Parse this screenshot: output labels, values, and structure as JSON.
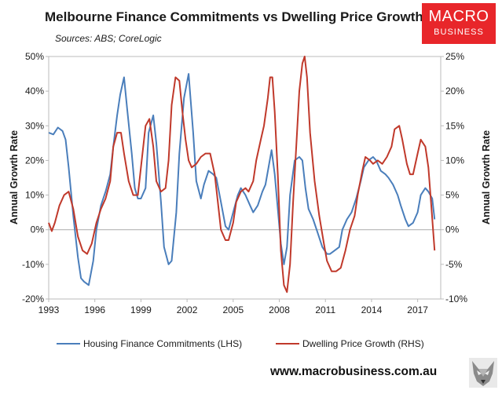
{
  "header": {
    "title": "Melbourne Finance Commitments vs Dwelling Price Growth",
    "subtitle": "Sources: ABS; CoreLogic"
  },
  "logo": {
    "line1": "MACRO",
    "line2": "BUSINESS",
    "color": "#e8262a"
  },
  "footer": {
    "url": "www.macrobusiness.com.au"
  },
  "chart_data": {
    "type": "line",
    "title": "Melbourne Finance Commitments vs Dwelling Price Growth",
    "ylabel": "Annual Growth Rate",
    "y2label": "Annual Growth Rate",
    "xlim": [
      1993,
      2018.5
    ],
    "ylim": [
      -20,
      50
    ],
    "y2lim": [
      -10,
      25
    ],
    "x_ticks": [
      1993,
      1996,
      1999,
      2002,
      2005,
      2008,
      2011,
      2014,
      2017
    ],
    "y_ticks": [
      -20,
      -10,
      0,
      10,
      20,
      30,
      40,
      50
    ],
    "y2_ticks": [
      -10,
      -5,
      0,
      5,
      10,
      15,
      20,
      25
    ],
    "y_tick_format": "percent",
    "grid": false,
    "legend": "bottom",
    "series": [
      {
        "name": "Housing Finance Commitments (LHS)",
        "axis": "left",
        "color": "#4a7ebb",
        "x": [
          1993.0,
          1993.3,
          1993.6,
          1993.9,
          1994.1,
          1994.3,
          1994.6,
          1994.9,
          1995.1,
          1995.3,
          1995.6,
          1995.9,
          1996.1,
          1996.4,
          1996.7,
          1997.0,
          1997.2,
          1997.45,
          1997.65,
          1997.9,
          1998.1,
          1998.4,
          1998.6,
          1998.8,
          1999.0,
          1999.3,
          1999.5,
          1999.8,
          2000.0,
          2000.3,
          2000.5,
          2000.8,
          2001.0,
          2001.3,
          2001.5,
          2001.8,
          2002.1,
          2002.4,
          2002.6,
          2002.9,
          2003.1,
          2003.4,
          2003.7,
          2003.9,
          2004.2,
          2004.5,
          2004.7,
          2005.0,
          2005.3,
          2005.5,
          2005.8,
          2006.1,
          2006.3,
          2006.6,
          2006.9,
          2007.1,
          2007.3,
          2007.5,
          2007.7,
          2007.9,
          2008.1,
          2008.3,
          2008.5,
          2008.7,
          2009.0,
          2009.3,
          2009.5,
          2009.7,
          2009.9,
          2010.2,
          2010.5,
          2010.8,
          2011.1,
          2011.3,
          2011.6,
          2011.9,
          2012.1,
          2012.4,
          2012.7,
          2013.0,
          2013.3,
          2013.5,
          2013.8,
          2014.1,
          2014.3,
          2014.6,
          2014.9,
          2015.1,
          2015.4,
          2015.7,
          2015.9,
          2016.2,
          2016.4,
          2016.7,
          2017.0,
          2017.2,
          2017.5,
          2017.7,
          2017.95,
          2018.1
        ],
        "y": [
          28,
          27.5,
          29.5,
          28.5,
          26,
          18,
          4,
          -8,
          -14,
          -15,
          -16,
          -9,
          0,
          7,
          11,
          16,
          24,
          33,
          39,
          44,
          35,
          22,
          12,
          9,
          9,
          12,
          28,
          33,
          25,
          8,
          -5,
          -10,
          -9,
          5,
          22,
          38,
          45,
          28,
          14,
          9,
          13,
          17,
          16,
          15,
          8,
          1,
          0,
          5,
          10,
          12,
          10,
          7,
          5,
          7,
          11,
          13,
          18,
          23,
          16,
          6,
          -4,
          -10,
          -5,
          10,
          20,
          21,
          20,
          12,
          6,
          3,
          -1,
          -5,
          -7,
          -7,
          -6,
          -5,
          0,
          3,
          5,
          9,
          14,
          18,
          20,
          21,
          20,
          17,
          16,
          15,
          13,
          10,
          7,
          3,
          1,
          2,
          5,
          10,
          12,
          11,
          9,
          3
        ],
        "values": [
          28,
          27.5,
          29.5,
          28.5,
          26,
          18,
          4,
          -8,
          -14,
          -15,
          -16,
          -9,
          0,
          7,
          11,
          16,
          24,
          33,
          39,
          44,
          35,
          22,
          12,
          9,
          9,
          12,
          28,
          33,
          25,
          8,
          -5,
          -10,
          -9,
          5,
          22,
          38,
          45,
          28,
          14,
          9,
          13,
          17,
          16,
          15,
          8,
          1,
          0,
          5,
          10,
          12,
          10,
          7,
          5,
          7,
          11,
          13,
          18,
          23,
          16,
          6,
          -4,
          -10,
          -5,
          10,
          20,
          21,
          20,
          12,
          6,
          3,
          -1,
          -5,
          -7,
          -7,
          -6,
          -5,
          0,
          3,
          5,
          9,
          14,
          18,
          20,
          21,
          20,
          17,
          16,
          15,
          13,
          10,
          7,
          3,
          1,
          2,
          5,
          10,
          12,
          11,
          9,
          3
        ]
      },
      {
        "name": "Dwelling Price Growth (RHS)",
        "axis": "right",
        "color": "#c0392b",
        "x": [
          1993.0,
          1993.2,
          1993.4,
          1993.7,
          1994.0,
          1994.3,
          1994.6,
          1994.9,
          1995.2,
          1995.5,
          1995.8,
          1996.1,
          1996.4,
          1996.7,
          1997.0,
          1997.2,
          1997.45,
          1997.7,
          1997.9,
          1998.2,
          1998.5,
          1998.8,
          1999.0,
          1999.3,
          1999.55,
          1999.8,
          2000.0,
          2000.3,
          2000.6,
          2000.8,
          2001.0,
          2001.25,
          2001.5,
          2001.7,
          2001.9,
          2002.1,
          2002.3,
          2002.6,
          2002.9,
          2003.2,
          2003.5,
          2003.8,
          2004.0,
          2004.2,
          2004.5,
          2004.7,
          2005.0,
          2005.2,
          2005.5,
          2005.8,
          2006.0,
          2006.3,
          2006.5,
          2006.8,
          2007.0,
          2007.25,
          2007.4,
          2007.55,
          2007.7,
          2007.9,
          2008.1,
          2008.3,
          2008.5,
          2008.7,
          2008.9,
          2009.1,
          2009.3,
          2009.5,
          2009.65,
          2009.8,
          2010.0,
          2010.3,
          2010.6,
          2010.9,
          2011.1,
          2011.4,
          2011.7,
          2012.0,
          2012.3,
          2012.6,
          2012.9,
          2013.1,
          2013.4,
          2013.6,
          2013.9,
          2014.1,
          2014.4,
          2014.7,
          2015.0,
          2015.3,
          2015.5,
          2015.8,
          2016.0,
          2016.3,
          2016.5,
          2016.7,
          2017.0,
          2017.2,
          2017.5,
          2017.7,
          2017.9,
          2018.1
        ],
        "y": [
          1,
          -0.2,
          1,
          3.5,
          5,
          5.5,
          3,
          -1,
          -3,
          -3.5,
          -2,
          1,
          3,
          4.5,
          7,
          12,
          14,
          14,
          11,
          7,
          5,
          5,
          9,
          15,
          16,
          12,
          7,
          5.5,
          6,
          10,
          18,
          22,
          21.5,
          17,
          13,
          10,
          9,
          9.5,
          10.5,
          11,
          11,
          8,
          4,
          0,
          -1.5,
          -1.5,
          1,
          4,
          5.5,
          6,
          5.5,
          7,
          10,
          13,
          15,
          19,
          22,
          22,
          17,
          8,
          -3,
          -8,
          -9,
          -5,
          4,
          12,
          20,
          24,
          26,
          22,
          14,
          7,
          2,
          -2,
          -4.5,
          -6,
          -6,
          -5.5,
          -3,
          0,
          2,
          5,
          8.5,
          10.5,
          10,
          9.5,
          10,
          9.5,
          10.5,
          12,
          14.5,
          15,
          13,
          9.5,
          8,
          8,
          11,
          13,
          12,
          9,
          3,
          -3
        ],
        "values": [
          1,
          -0.2,
          1,
          3.5,
          5,
          5.5,
          3,
          -1,
          -3,
          -3.5,
          -2,
          1,
          3,
          4.5,
          7,
          12,
          14,
          14,
          11,
          7,
          5,
          5,
          9,
          15,
          16,
          12,
          7,
          5.5,
          6,
          10,
          18,
          22,
          21.5,
          17,
          13,
          10,
          9,
          9.5,
          10.5,
          11,
          11,
          8,
          4,
          0,
          -1.5,
          -1.5,
          1,
          4,
          5.5,
          6,
          5.5,
          7,
          10,
          13,
          15,
          19,
          22,
          22,
          17,
          8,
          -3,
          -8,
          -9,
          -5,
          4,
          12,
          20,
          24,
          26,
          22,
          14,
          7,
          2,
          -2,
          -4.5,
          -6,
          -6,
          -5.5,
          -3,
          0,
          2,
          5,
          8.5,
          10.5,
          10,
          9.5,
          10,
          9.5,
          10.5,
          12,
          14.5,
          15,
          13,
          9.5,
          8,
          8,
          11,
          13,
          12,
          9,
          3,
          -3
        ]
      }
    ]
  }
}
